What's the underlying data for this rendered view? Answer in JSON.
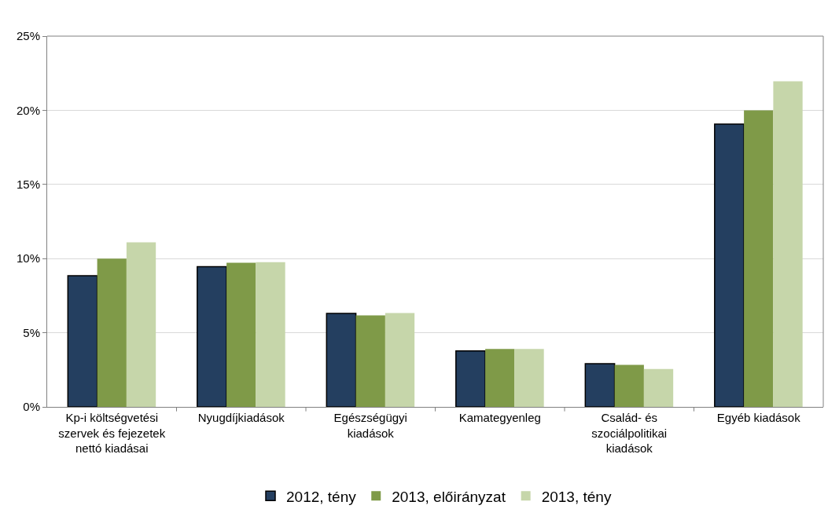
{
  "chart_data": {
    "type": "bar",
    "categories": [
      "Kp-i költségvetési szervek és fejezetek nettó kiadásai",
      "Nyugdíjkiadások",
      "Egészségügyi kiadások",
      "Kamategyenleg",
      "Család- és szociálpolitikai kiadások",
      "Egyéb kiadások"
    ],
    "series": [
      {
        "name": "2012, tény",
        "color": "#243f60",
        "values": [
          8.84,
          9.46,
          6.3,
          3.77,
          2.91,
          19.07
        ]
      },
      {
        "name": "2013, előirányzat",
        "color": "#7f9a48",
        "values": [
          10.0,
          9.72,
          6.17,
          3.91,
          2.84,
          20.0
        ]
      },
      {
        "name": "2013, tény",
        "color": "#c6d6aa",
        "values": [
          11.09,
          9.76,
          6.33,
          3.91,
          2.56,
          21.95
        ]
      }
    ],
    "ylim": [
      0,
      25
    ],
    "yticks": [
      {
        "value": 0,
        "label": "0%"
      },
      {
        "value": 5,
        "label": "5%"
      },
      {
        "value": 10,
        "label": "10%"
      },
      {
        "value": 15,
        "label": "15%"
      },
      {
        "value": 20,
        "label": "20%"
      },
      {
        "value": 25,
        "label": "25%"
      }
    ],
    "grid": "y",
    "legend": "bottom"
  }
}
